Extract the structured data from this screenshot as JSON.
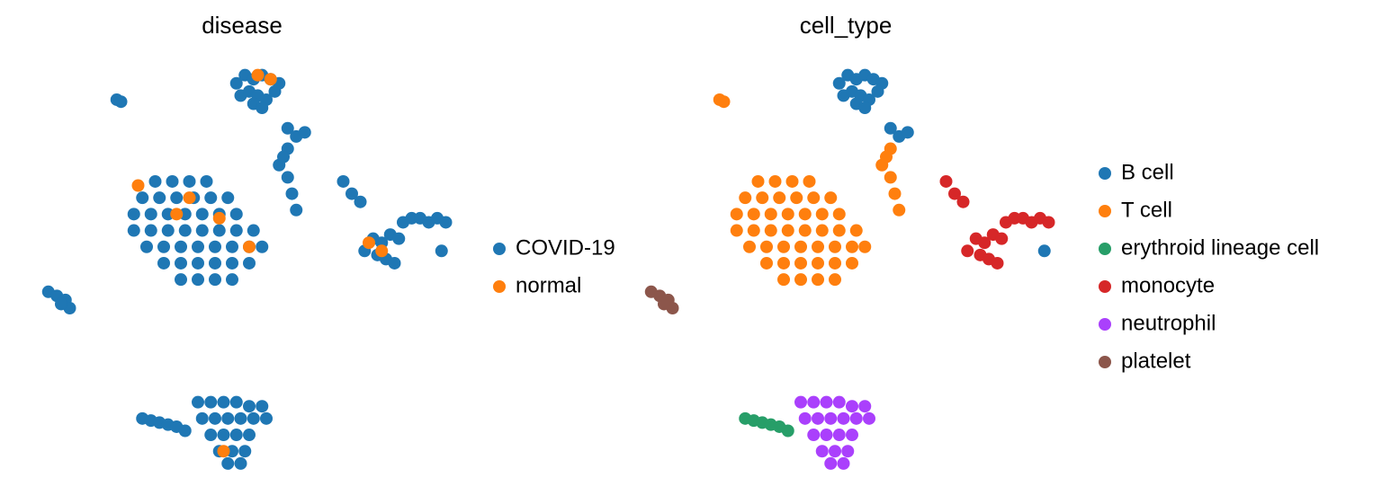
{
  "chart_data": [
    {
      "type": "scatter",
      "title": "disease",
      "xlim": [
        0,
        100
      ],
      "ylim": [
        0,
        100
      ],
      "series": [
        {
          "name": "COVID-19",
          "color": "#1f77b4",
          "x": [
            49,
            51,
            53,
            55,
            57,
            59,
            50,
            52,
            54,
            56,
            58,
            53,
            55,
            61,
            63,
            65,
            97,
            30,
            34,
            38,
            42,
            27,
            31,
            35,
            39,
            43,
            47,
            25,
            29,
            33,
            37,
            41,
            45,
            49,
            25,
            29,
            33,
            37,
            41,
            45,
            49,
            53,
            28,
            32,
            36,
            40,
            44,
            48,
            52,
            55,
            32,
            36,
            40,
            44,
            48,
            52,
            36,
            40,
            44,
            48,
            59,
            61,
            62,
            63,
            61,
            60,
            21,
            22,
            79,
            82,
            84,
            86,
            81,
            83,
            85,
            87,
            88,
            90,
            92,
            94,
            96,
            98,
            74,
            76,
            78,
            40,
            43,
            46,
            49,
            52,
            55,
            41,
            44,
            47,
            50,
            53,
            56,
            43,
            46,
            49,
            52,
            45,
            48,
            51,
            47,
            50,
            27,
            29,
            31,
            33,
            35,
            37,
            5,
            7,
            9,
            10,
            8
          ],
          "y": [
            95,
            97,
            96,
            97,
            96,
            95,
            92,
            93,
            92,
            91,
            93,
            90,
            89,
            84,
            82,
            83,
            54,
            71,
            71,
            71,
            71,
            67,
            67,
            67,
            67,
            67,
            67,
            63,
            63,
            63,
            63,
            63,
            63,
            63,
            59,
            59,
            59,
            59,
            59,
            59,
            59,
            59,
            55,
            55,
            55,
            55,
            55,
            55,
            55,
            55,
            51,
            51,
            51,
            51,
            51,
            51,
            47,
            47,
            47,
            47,
            75,
            72,
            68,
            64,
            79,
            77,
            91,
            90.5,
            54,
            53,
            52,
            51,
            57,
            56,
            58,
            57,
            61,
            62,
            62,
            61,
            62,
            61,
            71,
            68,
            66,
            17,
            17,
            17,
            17,
            16,
            16,
            13,
            13,
            13,
            13,
            13,
            13,
            9,
            9,
            9,
            9,
            5,
            5,
            5,
            2,
            2,
            13,
            12.5,
            12,
            11.5,
            11,
            10,
            44,
            43,
            42,
            40,
            41
          ]
        },
        {
          "name": "normal",
          "color": "#ff7f0e",
          "x": [
            26,
            38,
            45,
            52,
            35,
            83,
            80,
            54,
            57,
            46
          ],
          "y": [
            70,
            67,
            62,
            55,
            63,
            54,
            56,
            97,
            96,
            5
          ]
        }
      ]
    },
    {
      "type": "scatter",
      "title": "cell_type",
      "xlim": [
        0,
        100
      ],
      "ylim": [
        0,
        100
      ],
      "series": [
        {
          "name": "B cell",
          "color": "#1f77b4",
          "x": [
            49,
            51,
            53,
            55,
            57,
            59,
            50,
            52,
            54,
            56,
            58,
            53,
            55,
            61,
            63,
            65,
            97
          ],
          "y": [
            95,
            97,
            96,
            97,
            96,
            95,
            92,
            93,
            92,
            91,
            93,
            90,
            89,
            84,
            82,
            83,
            54
          ]
        },
        {
          "name": "T cell",
          "color": "#ff7f0e",
          "x": [
            30,
            34,
            38,
            42,
            27,
            31,
            35,
            39,
            43,
            47,
            25,
            29,
            33,
            37,
            41,
            45,
            49,
            25,
            29,
            33,
            37,
            41,
            45,
            49,
            53,
            28,
            32,
            36,
            40,
            44,
            48,
            52,
            55,
            32,
            36,
            40,
            44,
            48,
            52,
            36,
            40,
            44,
            48,
            59,
            61,
            62,
            63,
            61,
            60,
            21,
            22
          ],
          "y": [
            71,
            71,
            71,
            71,
            67,
            67,
            67,
            67,
            67,
            67,
            63,
            63,
            63,
            63,
            63,
            63,
            63,
            59,
            59,
            59,
            59,
            59,
            59,
            59,
            59,
            55,
            55,
            55,
            55,
            55,
            55,
            55,
            55,
            51,
            51,
            51,
            51,
            51,
            51,
            47,
            47,
            47,
            47,
            75,
            72,
            68,
            64,
            79,
            77,
            91,
            90.5
          ]
        },
        {
          "name": "erythroid lineage cell",
          "color": "#279e68",
          "x": [
            27,
            29,
            31,
            33,
            35,
            37
          ],
          "y": [
            13,
            12.5,
            12,
            11.5,
            11,
            10
          ]
        },
        {
          "name": "monocyte",
          "color": "#d62728",
          "x": [
            79,
            82,
            84,
            86,
            81,
            83,
            85,
            87,
            88,
            90,
            92,
            94,
            96,
            98,
            74,
            76,
            78
          ],
          "y": [
            54,
            53,
            52,
            51,
            57,
            56,
            58,
            57,
            61,
            62,
            62,
            61,
            62,
            61,
            71,
            68,
            66
          ]
        },
        {
          "name": "neutrophil",
          "color": "#aa40fc",
          "x": [
            40,
            43,
            46,
            49,
            52,
            55,
            41,
            44,
            47,
            50,
            53,
            56,
            43,
            46,
            49,
            52,
            45,
            48,
            51,
            47,
            50
          ],
          "y": [
            17,
            17,
            17,
            17,
            16,
            16,
            13,
            13,
            13,
            13,
            13,
            13,
            9,
            9,
            9,
            9,
            5,
            5,
            5,
            2,
            2
          ]
        },
        {
          "name": "platelet",
          "color": "#8c564b",
          "x": [
            5,
            7,
            9,
            10,
            8
          ],
          "y": [
            44,
            43,
            42,
            40,
            41
          ]
        }
      ]
    }
  ]
}
